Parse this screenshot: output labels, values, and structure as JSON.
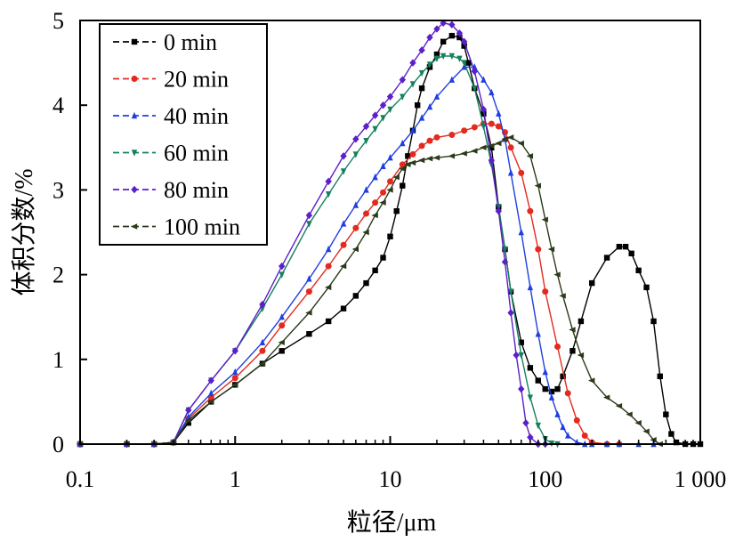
{
  "chart_data": {
    "type": "line",
    "xlabel": "粒径/μm",
    "ylabel": "体积分数/%",
    "xscale": "log",
    "xlim": [
      0.1,
      1000
    ],
    "ylim": [
      0,
      5
    ],
    "xticks": [
      {
        "value": 0.1,
        "label": "0.1"
      },
      {
        "value": 1,
        "label": "1"
      },
      {
        "value": 10,
        "label": "10"
      },
      {
        "value": 100,
        "label": "100"
      },
      {
        "value": 1000,
        "label": "1 000"
      }
    ],
    "yticks": [
      {
        "value": 0,
        "label": "0"
      },
      {
        "value": 1,
        "label": "1"
      },
      {
        "value": 2,
        "label": "2"
      },
      {
        "value": 3,
        "label": "3"
      },
      {
        "value": 4,
        "label": "4"
      },
      {
        "value": 5,
        "label": "5"
      }
    ],
    "grid": false,
    "legend_position": "top-left",
    "series": [
      {
        "name": "0 min",
        "color": "#000000",
        "marker": "square",
        "x": [
          0.1,
          0.2,
          0.3,
          0.4,
          0.5,
          0.7,
          1,
          1.5,
          2,
          3,
          4,
          5,
          6,
          7,
          8,
          9,
          10,
          11,
          12,
          13,
          14,
          15,
          16,
          18,
          20,
          22,
          25,
          28,
          30,
          32,
          35,
          40,
          45,
          50,
          55,
          60,
          70,
          80,
          90,
          100,
          110,
          120,
          130,
          150,
          170,
          200,
          250,
          300,
          330,
          360,
          400,
          450,
          500,
          550,
          600,
          650,
          700,
          800,
          900,
          1000
        ],
        "y": [
          0,
          0,
          0,
          0.02,
          0.25,
          0.5,
          0.7,
          0.95,
          1.1,
          1.3,
          1.45,
          1.6,
          1.75,
          1.9,
          2.05,
          2.2,
          2.45,
          2.75,
          3.05,
          3.4,
          3.7,
          4.0,
          4.2,
          4.45,
          4.6,
          4.75,
          4.82,
          4.8,
          4.7,
          4.5,
          4.2,
          3.9,
          3.5,
          2.8,
          2.3,
          1.8,
          1.2,
          0.9,
          0.75,
          0.65,
          0.62,
          0.65,
          0.8,
          1.1,
          1.45,
          1.9,
          2.2,
          2.33,
          2.33,
          2.25,
          2.05,
          1.85,
          1.45,
          0.8,
          0.35,
          0.12,
          0.02,
          0,
          0,
          0
        ]
      },
      {
        "name": "20 min",
        "color": "#e32a1f",
        "marker": "circle",
        "x": [
          0.1,
          0.2,
          0.3,
          0.4,
          0.5,
          0.7,
          1,
          1.5,
          2,
          3,
          4,
          5,
          6,
          7,
          8,
          9,
          10,
          12,
          14,
          16,
          18,
          20,
          25,
          30,
          35,
          40,
          45,
          50,
          55,
          60,
          70,
          80,
          90,
          100,
          120,
          140,
          160,
          180,
          200,
          250,
          300
        ],
        "y": [
          0,
          0,
          0,
          0.02,
          0.3,
          0.55,
          0.78,
          1.1,
          1.4,
          1.8,
          2.1,
          2.35,
          2.55,
          2.72,
          2.85,
          2.97,
          3.1,
          3.3,
          3.42,
          3.52,
          3.58,
          3.62,
          3.65,
          3.7,
          3.74,
          3.78,
          3.78,
          3.75,
          3.68,
          3.5,
          3.2,
          2.75,
          2.3,
          1.8,
          1.15,
          0.6,
          0.28,
          0.1,
          0.02,
          0,
          0
        ]
      },
      {
        "name": "40 min",
        "color": "#1f3fe0",
        "marker": "triangle-up",
        "x": [
          0.1,
          0.2,
          0.3,
          0.4,
          0.5,
          0.7,
          1,
          1.5,
          2,
          3,
          4,
          5,
          6,
          7,
          8,
          9,
          10,
          12,
          14,
          16,
          18,
          20,
          25,
          30,
          35,
          40,
          45,
          50,
          55,
          60,
          70,
          80,
          90,
          100,
          110,
          120,
          130,
          140,
          160,
          180,
          200,
          250,
          300,
          400,
          500
        ],
        "y": [
          0,
          0,
          0,
          0.02,
          0.32,
          0.6,
          0.85,
          1.2,
          1.5,
          1.95,
          2.3,
          2.6,
          2.82,
          3.0,
          3.15,
          3.28,
          3.38,
          3.55,
          3.7,
          3.85,
          3.98,
          4.1,
          4.3,
          4.45,
          4.45,
          4.3,
          4.15,
          3.9,
          3.6,
          3.2,
          2.5,
          1.85,
          1.3,
          0.85,
          0.55,
          0.35,
          0.2,
          0.1,
          0.02,
          0,
          0,
          0,
          0,
          0,
          0
        ]
      },
      {
        "name": "60 min",
        "color": "#15805f",
        "marker": "triangle-down",
        "x": [
          0.1,
          0.2,
          0.3,
          0.4,
          0.5,
          0.7,
          1,
          1.5,
          2,
          3,
          4,
          5,
          6,
          7,
          8,
          9,
          10,
          12,
          14,
          16,
          18,
          20,
          22,
          25,
          28,
          30,
          35,
          40,
          45,
          50,
          55,
          60,
          70,
          80,
          90,
          100,
          110,
          120
        ],
        "y": [
          0,
          0,
          0,
          0.02,
          0.4,
          0.75,
          1.1,
          1.6,
          2.0,
          2.6,
          2.95,
          3.22,
          3.42,
          3.58,
          3.72,
          3.85,
          3.95,
          4.1,
          4.25,
          4.38,
          4.48,
          4.55,
          4.58,
          4.58,
          4.55,
          4.5,
          4.2,
          3.75,
          3.3,
          2.8,
          2.3,
          1.8,
          1.05,
          0.55,
          0.22,
          0.06,
          0.01,
          0
        ]
      },
      {
        "name": "80 min",
        "color": "#5c1fc9",
        "marker": "diamond",
        "x": [
          0.1,
          0.2,
          0.3,
          0.4,
          0.5,
          0.7,
          1,
          1.5,
          2,
          3,
          4,
          5,
          6,
          7,
          8,
          9,
          10,
          12,
          14,
          16,
          18,
          20,
          22,
          25,
          28,
          30,
          35,
          40,
          45,
          50,
          55,
          60,
          65,
          70,
          75,
          80,
          90,
          100
        ],
        "y": [
          0,
          0,
          0,
          0.02,
          0.4,
          0.75,
          1.1,
          1.65,
          2.1,
          2.7,
          3.1,
          3.4,
          3.6,
          3.75,
          3.88,
          4.0,
          4.1,
          4.3,
          4.5,
          4.65,
          4.8,
          4.9,
          4.97,
          4.95,
          4.85,
          4.75,
          4.4,
          3.95,
          3.35,
          2.75,
          2.15,
          1.55,
          1.05,
          0.65,
          0.25,
          0.08,
          0,
          0
        ]
      },
      {
        "name": "100 min",
        "color": "#2a3a1a",
        "marker": "triangle-left",
        "x": [
          0.1,
          0.2,
          0.3,
          0.4,
          0.5,
          0.7,
          1,
          1.5,
          2,
          3,
          4,
          5,
          6,
          7,
          8,
          9,
          10,
          11,
          12,
          13,
          14,
          16,
          18,
          20,
          25,
          30,
          35,
          40,
          45,
          50,
          55,
          60,
          70,
          80,
          90,
          100,
          110,
          120,
          130,
          150,
          170,
          200,
          250,
          300,
          350,
          400,
          450,
          500,
          550
        ],
        "y": [
          0,
          0,
          0,
          0.02,
          0.28,
          0.5,
          0.7,
          0.95,
          1.2,
          1.55,
          1.85,
          2.1,
          2.3,
          2.5,
          2.7,
          2.85,
          3.0,
          3.15,
          3.25,
          3.3,
          3.32,
          3.35,
          3.37,
          3.38,
          3.4,
          3.43,
          3.46,
          3.5,
          3.52,
          3.55,
          3.6,
          3.62,
          3.55,
          3.4,
          3.05,
          2.65,
          2.3,
          2.0,
          1.75,
          1.35,
          1.05,
          0.75,
          0.55,
          0.45,
          0.35,
          0.25,
          0.15,
          0.05,
          0
        ]
      }
    ]
  }
}
